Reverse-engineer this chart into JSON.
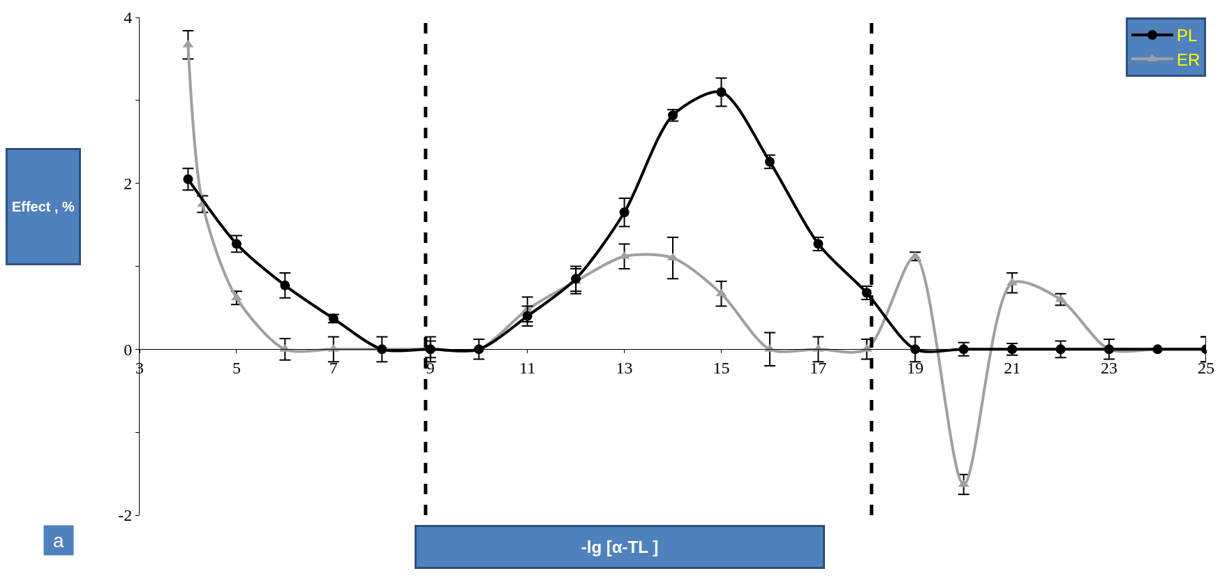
{
  "chart_data": {
    "type": "line",
    "xlabel": "-lg [α-TL ]",
    "ylabel": "Effect , %",
    "annotations": [
      "a"
    ],
    "xlim": [
      3,
      25
    ],
    "xticks": [
      3,
      5,
      7,
      9,
      11,
      13,
      15,
      17,
      19,
      21,
      23,
      25
    ],
    "ylim": [
      -2,
      4
    ],
    "yticks": [
      -2,
      {
        "value": -1,
        "label": null
      },
      0,
      {
        "value": 1,
        "label": null
      },
      2,
      {
        "value": 3,
        "label": null
      },
      4
    ],
    "legend": "top right",
    "ref_lines": [
      {
        "axis": "x",
        "value": 8.9,
        "label": null,
        "color": "#000000",
        "line_style": "dashed"
      },
      {
        "axis": "x",
        "value": 18.1,
        "label": null,
        "color": "#000000",
        "line_style": "dashed"
      }
    ],
    "series": [
      {
        "name": "PL",
        "color": "#000000",
        "marker": "circle",
        "x": [
          4,
          5,
          6,
          7,
          8,
          9,
          10,
          11,
          12,
          13,
          14,
          15,
          16,
          17,
          18,
          19,
          20,
          21,
          22,
          23,
          24,
          25
        ],
        "values": [
          2.05,
          1.27,
          0.77,
          0.37,
          0,
          0,
          0,
          0.4,
          0.85,
          1.65,
          2.82,
          3.1,
          2.26,
          1.27,
          0.68,
          0,
          0,
          0,
          0,
          0,
          0,
          0
        ],
        "errors": [
          0.13,
          0.1,
          0.15,
          0.05,
          0.15,
          0.15,
          0.12,
          0.12,
          0.15,
          0.17,
          0.07,
          0.17,
          0.08,
          0.08,
          0.08,
          0.15,
          0.08,
          0.07,
          0.1,
          0.12,
          null,
          0.15
        ]
      },
      {
        "name": "ER",
        "color": "#a0a0a0",
        "marker": "triangle",
        "x": [
          4,
          4.3,
          5,
          6,
          7,
          8,
          9,
          10,
          11,
          12,
          13,
          14,
          15,
          16,
          17,
          18,
          19,
          20,
          21,
          22,
          23,
          24,
          25
        ],
        "values": [
          3.67,
          1.75,
          0.62,
          0,
          0,
          0,
          0,
          0,
          0.48,
          0.82,
          1.12,
          1.1,
          0.67,
          0,
          0,
          0,
          1.12,
          -1.63,
          0.8,
          0.6,
          0,
          0,
          0
        ],
        "errors": [
          0.17,
          0.1,
          0.08,
          0.13,
          0.15,
          null,
          0.1,
          null,
          0.15,
          0.15,
          0.15,
          0.25,
          0.15,
          0.2,
          0.15,
          0.12,
          0.05,
          0.12,
          0.12,
          0.07,
          null,
          null,
          0.15
        ]
      }
    ]
  }
}
